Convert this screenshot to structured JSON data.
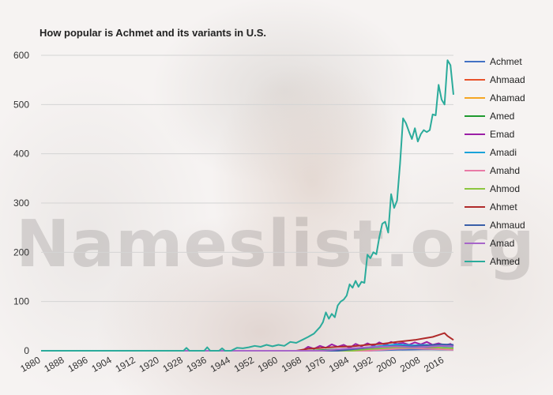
{
  "title": "How popular is Achmet and its variants in U.S.",
  "watermark": "Nameslist.org",
  "chart_data": {
    "type": "line",
    "title": "How popular is Achmet and its variants in U.S.",
    "xlim": [
      1880,
      2019
    ],
    "ylim": [
      0,
      600
    ],
    "x_ticks": [
      1880,
      1888,
      1896,
      1904,
      1912,
      1920,
      1928,
      1936,
      1944,
      1952,
      1960,
      1968,
      1976,
      1984,
      1992,
      2000,
      2008,
      2016
    ],
    "y_ticks": [
      0,
      100,
      200,
      300,
      400,
      500,
      600
    ],
    "grid": true,
    "legend_position": "right",
    "series": [
      {
        "name": "Achmet",
        "color": "#4472c4",
        "x": [
          1880,
          1970,
          1980,
          1990,
          2000,
          2010,
          2019
        ],
        "values": [
          0,
          0,
          0,
          0,
          2,
          3,
          2
        ]
      },
      {
        "name": "Ahmaad",
        "color": "#e8522b",
        "x": [
          1880,
          1988,
          1992,
          1996,
          2000,
          2004,
          2008,
          2012,
          2016,
          2019
        ],
        "values": [
          0,
          0,
          5,
          10,
          13,
          9,
          6,
          7,
          5,
          4
        ]
      },
      {
        "name": "Ahamad",
        "color": "#f5a623",
        "x": [
          1880,
          1990,
          1995,
          2000,
          2005,
          2010,
          2015,
          2019
        ],
        "values": [
          0,
          0,
          3,
          5,
          6,
          4,
          5,
          3
        ]
      },
      {
        "name": "Amed",
        "color": "#1f9a2f",
        "x": [
          1880,
          1970,
          1980,
          1990,
          1995,
          2000,
          2005,
          2010,
          2015,
          2019
        ],
        "values": [
          0,
          0,
          3,
          5,
          9,
          8,
          6,
          7,
          5,
          4
        ]
      },
      {
        "name": "Emad",
        "color": "#9b1fa6",
        "x": [
          1880,
          1968,
          1970,
          1972,
          1974,
          1976,
          1978,
          1980,
          1982,
          1984,
          1986,
          1988,
          1990,
          1992,
          1994,
          1996,
          1998,
          2000,
          2002,
          2004,
          2006,
          2008,
          2010,
          2012,
          2014,
          2016,
          2018,
          2019
        ],
        "values": [
          0,
          0,
          8,
          4,
          10,
          6,
          13,
          8,
          12,
          6,
          14,
          9,
          15,
          10,
          17,
          12,
          18,
          14,
          16,
          12,
          17,
          13,
          18,
          12,
          15,
          11,
          14,
          10
        ]
      },
      {
        "name": "Amadi",
        "color": "#1aa3d9",
        "x": [
          1880,
          1975,
          1985,
          1990,
          1995,
          2000,
          2005,
          2010,
          2015,
          2019
        ],
        "values": [
          0,
          0,
          4,
          7,
          10,
          13,
          11,
          12,
          9,
          8
        ]
      },
      {
        "name": "Amahd",
        "color": "#e97ba6",
        "x": [
          1880,
          1990,
          1995,
          2000,
          2005,
          2010,
          2015,
          2019
        ],
        "values": [
          0,
          0,
          2,
          4,
          5,
          4,
          3,
          2
        ]
      },
      {
        "name": "Ahmod",
        "color": "#8cc63f",
        "x": [
          1880,
          1985,
          1990,
          1995,
          2000,
          2005,
          2010,
          2015,
          2019
        ],
        "values": [
          0,
          0,
          3,
          5,
          7,
          6,
          8,
          6,
          5
        ]
      },
      {
        "name": "Ahmet",
        "color": "#b02a2a",
        "x": [
          1880,
          1966,
          1970,
          1975,
          1980,
          1985,
          1990,
          1995,
          2000,
          2003,
          2006,
          2009,
          2012,
          2014,
          2016,
          2017,
          2018,
          2019
        ],
        "values": [
          0,
          0,
          4,
          6,
          8,
          9,
          12,
          14,
          18,
          20,
          22,
          25,
          28,
          32,
          36,
          30,
          26,
          22
        ]
      },
      {
        "name": "Ahmaud",
        "color": "#3a5fa8",
        "x": [
          1880,
          1980,
          1985,
          1990,
          1995,
          2000,
          2005,
          2010,
          2015,
          2019
        ],
        "values": [
          0,
          0,
          3,
          6,
          8,
          10,
          9,
          11,
          13,
          12
        ]
      },
      {
        "name": "Amad",
        "color": "#a766c9",
        "x": [
          1880,
          1975,
          1980,
          1985,
          1990,
          1995,
          2000,
          2005,
          2010,
          2015,
          2019
        ],
        "values": [
          0,
          0,
          3,
          5,
          7,
          8,
          9,
          7,
          8,
          10,
          9
        ]
      },
      {
        "name": "Ahmed",
        "color": "#2bab9b",
        "x": [
          1880,
          1928,
          1929,
          1930,
          1935,
          1936,
          1937,
          1940,
          1941,
          1942,
          1944,
          1946,
          1948,
          1950,
          1952,
          1954,
          1956,
          1958,
          1960,
          1962,
          1964,
          1966,
          1968,
          1970,
          1972,
          1974,
          1975,
          1976,
          1977,
          1978,
          1979,
          1980,
          1981,
          1982,
          1983,
          1984,
          1985,
          1986,
          1987,
          1988,
          1989,
          1990,
          1991,
          1992,
          1993,
          1994,
          1995,
          1996,
          1997,
          1998,
          1999,
          2000,
          2001,
          2002,
          2003,
          2004,
          2005,
          2006,
          2007,
          2008,
          2009,
          2010,
          2011,
          2012,
          2013,
          2014,
          2015,
          2016,
          2017,
          2018,
          2019
        ],
        "values": [
          0,
          0,
          6,
          0,
          0,
          7,
          0,
          0,
          5,
          0,
          0,
          6,
          5,
          7,
          10,
          8,
          12,
          9,
          12,
          10,
          18,
          16,
          22,
          28,
          35,
          48,
          58,
          78,
          65,
          75,
          68,
          92,
          100,
          104,
          112,
          135,
          128,
          142,
          130,
          140,
          138,
          195,
          188,
          200,
          196,
          230,
          258,
          262,
          240,
          318,
          290,
          305,
          380,
          472,
          462,
          445,
          430,
          452,
          425,
          440,
          448,
          444,
          448,
          480,
          478,
          540,
          510,
          500,
          590,
          580,
          520
        ]
      }
    ]
  }
}
